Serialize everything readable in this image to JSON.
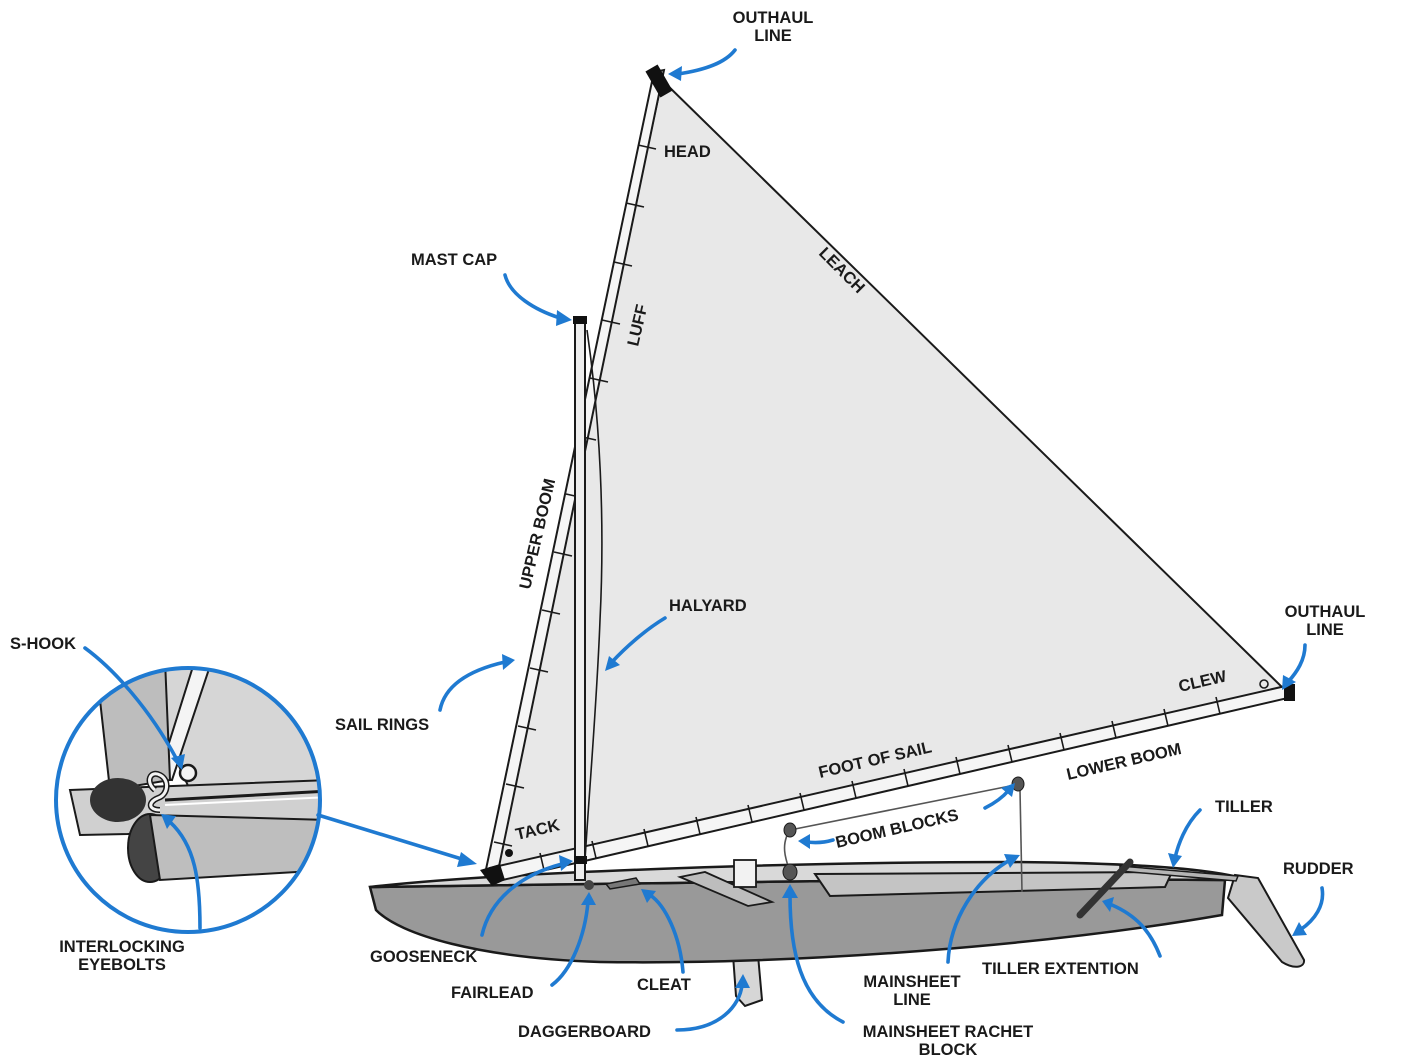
{
  "labels": {
    "outhaul_line_top": [
      "OUTHAUL",
      "LINE"
    ],
    "head": "HEAD",
    "leach": "LEACH",
    "mast_cap": "MAST CAP",
    "luff": "LUFF",
    "upper_boom": "UPPER BOOM",
    "halyard": "HALYARD",
    "outhaul_line_right": [
      "OUTHAUL",
      "LINE"
    ],
    "clew": "CLEW",
    "s_hook": "S-HOOK",
    "sail_rings": "SAIL RINGS",
    "foot_of_sail": "FOOT OF SAIL",
    "lower_boom": "LOWER BOOM",
    "tack": "TACK",
    "boom_blocks": "BOOM BLOCKS",
    "tiller": "TILLER",
    "rudder": "RUDDER",
    "interlocking_eyebolts": [
      "INTERLOCKING",
      "EYEBOLTS"
    ],
    "gooseneck": "GOOSENECK",
    "fairlead": "FAIRLEAD",
    "cleat": "CLEAT",
    "mainsheet_line": [
      "MAINSHEET",
      "LINE"
    ],
    "tiller_extention": "TILLER EXTENTION",
    "daggerboard": "DAGGERBOARD",
    "mainsheet_rachet_block": [
      "MAINSHEET RACHET",
      "BLOCK"
    ]
  },
  "colors": {
    "arrow": "#1f7ad1",
    "sail": "#e8e8e8",
    "hull": "#9a9a9a",
    "outline": "#1a1a1a"
  }
}
